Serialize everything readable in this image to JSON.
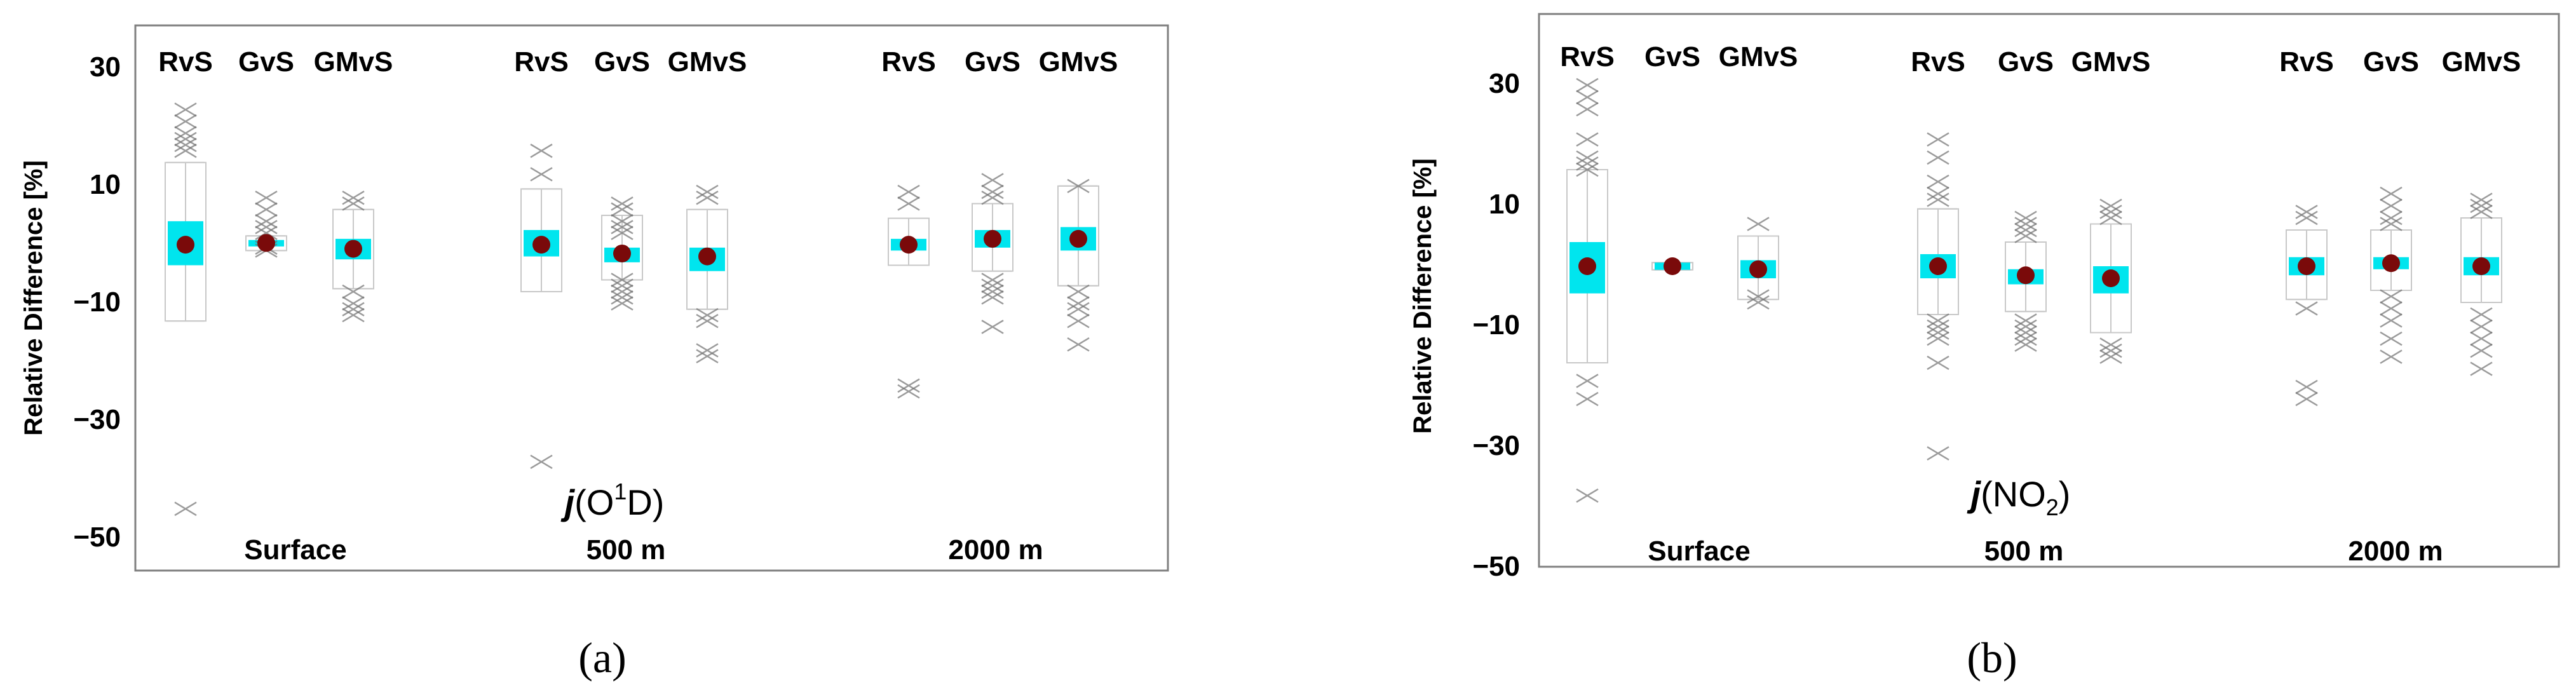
{
  "colors": {
    "box": "#00e5ee",
    "mean": "#7a0a0a",
    "whisker": "#c8c8c8",
    "outlier": "#707070"
  },
  "chart_data": [
    {
      "type": "box",
      "panel_label": "(a)",
      "ylabel": "Relative Difference [%]",
      "ylim": [
        -55,
        40
      ],
      "yticks": [
        "30",
        "10",
        "−10",
        "−30",
        "−50"
      ],
      "species": {
        "prefix": "j",
        "open": "(O",
        "sup": "1",
        "close": "D)"
      },
      "groups": [
        {
          "name": "Surface",
          "methods": [
            "RvS",
            "GvS",
            "GMvS"
          ]
        },
        {
          "name": "500 m",
          "methods": [
            "RvS",
            "GvS",
            "GMvS"
          ]
        },
        {
          "name": "2000 m",
          "methods": [
            "RvS",
            "GvS",
            "GMvS"
          ]
        }
      ],
      "boxes": [
        {
          "group": "Surface",
          "method": "RvS",
          "mean": 0.0,
          "q1": -3.5,
          "q3": 4.0,
          "whisker_low": -13,
          "whisker_high": 14,
          "outliers": [
            23,
            21,
            19,
            18,
            17,
            16,
            -45
          ]
        },
        {
          "group": "Surface",
          "method": "GvS",
          "mean": 0.3,
          "q1": -0.3,
          "q3": 0.8,
          "whisker_low": -1,
          "whisker_high": 1.5,
          "outliers": [
            8,
            6,
            4,
            3,
            2,
            -0.5,
            -1
          ]
        },
        {
          "group": "Surface",
          "method": "GMvS",
          "mean": -0.7,
          "q1": -2.5,
          "q3": 1.0,
          "whisker_low": -7.5,
          "whisker_high": 6,
          "outliers": [
            8,
            7,
            -8,
            -10,
            -11,
            -12
          ]
        },
        {
          "group": "500 m",
          "method": "RvS",
          "mean": 0.0,
          "q1": -2.0,
          "q3": 2.5,
          "whisker_low": -8,
          "whisker_high": 9.5,
          "outliers": [
            16,
            12,
            -37
          ]
        },
        {
          "group": "500 m",
          "method": "GvS",
          "mean": -1.5,
          "q1": -3.0,
          "q3": -0.5,
          "whisker_low": -6,
          "whisker_high": 5,
          "outliers": [
            7,
            6,
            4,
            3,
            2,
            -6,
            -7,
            -8,
            -9,
            -10
          ]
        },
        {
          "group": "500 m",
          "method": "GMvS",
          "mean": -2.0,
          "q1": -4.5,
          "q3": -0.5,
          "whisker_low": -11,
          "whisker_high": 6,
          "outliers": [
            9,
            8,
            -12,
            -13,
            -18,
            -19
          ]
        },
        {
          "group": "2000 m",
          "method": "RvS",
          "mean": 0.0,
          "q1": -1.0,
          "q3": 1.0,
          "whisker_low": -3.5,
          "whisker_high": 4.5,
          "outliers": [
            9,
            7,
            -24,
            -25
          ]
        },
        {
          "group": "2000 m",
          "method": "GvS",
          "mean": 1.0,
          "q1": -0.5,
          "q3": 2.5,
          "whisker_low": -4.5,
          "whisker_high": 7,
          "outliers": [
            11,
            9,
            8,
            -6,
            -7,
            -8,
            -9,
            -14
          ]
        },
        {
          "group": "2000 m",
          "method": "GMvS",
          "mean": 1.0,
          "q1": -1.0,
          "q3": 3.0,
          "whisker_low": -7,
          "whisker_high": 10,
          "outliers": [
            10,
            -8,
            -10,
            -11,
            -13,
            -17
          ]
        }
      ]
    },
    {
      "type": "box",
      "panel_label": "(b)",
      "ylabel": "Relative Difference [%]",
      "ylim": [
        -50,
        42
      ],
      "yticks": [
        "30",
        "10",
        "−10",
        "−30",
        "−50"
      ],
      "species": {
        "prefix": "j",
        "open": "(NO",
        "sub": "2",
        "close": ")"
      },
      "groups": [
        {
          "name": "Surface",
          "methods": [
            "RvS",
            "GvS",
            "GMvS"
          ]
        },
        {
          "name": "500 m",
          "methods": [
            "RvS",
            "GvS",
            "GMvS"
          ]
        },
        {
          "name": "2000 m",
          "methods": [
            "RvS",
            "GvS",
            "GMvS"
          ]
        }
      ],
      "boxes": [
        {
          "group": "Surface",
          "method": "RvS",
          "mean": 0.0,
          "q1": -4.5,
          "q3": 4.0,
          "whisker_low": -16,
          "whisker_high": 16,
          "outliers": [
            30,
            28,
            26,
            21,
            18,
            17,
            16,
            -19,
            -22,
            -38
          ]
        },
        {
          "group": "Surface",
          "method": "GvS",
          "mean": 0.0,
          "q1": -0.6,
          "q3": 0.6,
          "whisker_low": -0.6,
          "whisker_high": 0.6,
          "outliers": []
        },
        {
          "group": "Surface",
          "method": "GMvS",
          "mean": -0.5,
          "q1": -2.0,
          "q3": 1.0,
          "whisker_low": -5.5,
          "whisker_high": 5,
          "outliers": [
            7,
            -5,
            -6
          ]
        },
        {
          "group": "500 m",
          "method": "RvS",
          "mean": 0.0,
          "q1": -2.0,
          "q3": 2.0,
          "whisker_low": -8,
          "whisker_high": 9.5,
          "outliers": [
            21,
            18,
            14,
            12,
            11,
            -9,
            -10,
            -11,
            -12,
            -16,
            -31
          ]
        },
        {
          "group": "500 m",
          "method": "GvS",
          "mean": -1.5,
          "q1": -3.0,
          "q3": -0.5,
          "whisker_low": -7.5,
          "whisker_high": 4,
          "outliers": [
            8,
            7,
            6,
            5,
            -9,
            -10,
            -11,
            -12,
            -13
          ]
        },
        {
          "group": "500 m",
          "method": "GMvS",
          "mean": -2.0,
          "q1": -4.5,
          "q3": 0.0,
          "whisker_low": -11,
          "whisker_high": 7,
          "outliers": [
            10,
            9,
            8,
            -13,
            -14,
            -15
          ]
        },
        {
          "group": "2000 m",
          "method": "RvS",
          "mean": 0.0,
          "q1": -1.5,
          "q3": 1.5,
          "whisker_low": -5.5,
          "whisker_high": 6,
          "outliers": [
            9,
            8,
            -7,
            -20,
            -22
          ]
        },
        {
          "group": "2000 m",
          "method": "GvS",
          "mean": 0.5,
          "q1": -0.5,
          "q3": 1.5,
          "whisker_low": -4,
          "whisker_high": 6,
          "outliers": [
            12,
            10,
            8,
            7,
            -5,
            -7,
            -9,
            -12,
            -15
          ]
        },
        {
          "group": "2000 m",
          "method": "GMvS",
          "mean": 0.0,
          "q1": -1.5,
          "q3": 1.5,
          "whisker_low": -6,
          "whisker_high": 8,
          "outliers": [
            11,
            10,
            9,
            -8,
            -10,
            -12,
            -14,
            -17
          ]
        }
      ]
    }
  ]
}
